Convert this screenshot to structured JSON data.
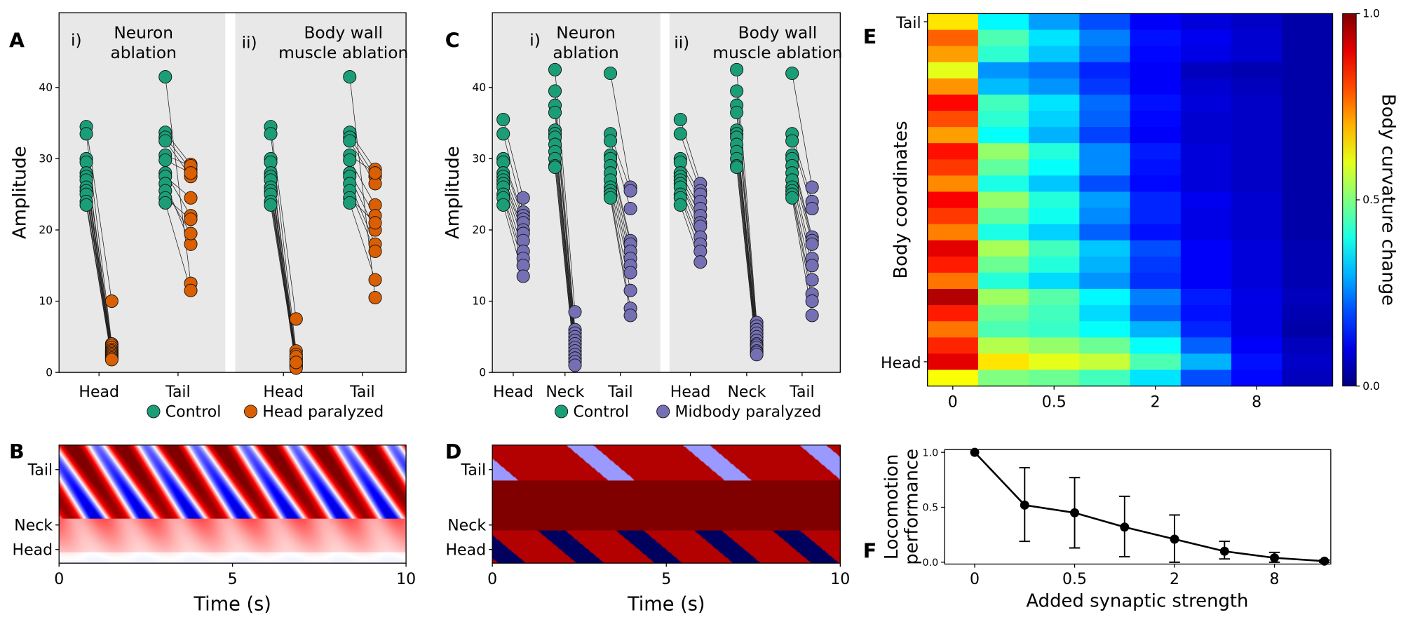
{
  "panel_letters": {
    "A": "A",
    "B": "B",
    "C": "C",
    "D": "D",
    "E": "E",
    "F": "F"
  },
  "colors": {
    "control": "#1b9e77",
    "head_paralyzed": "#d95f02",
    "midbody_paralyzed": "#7570b3",
    "panel_bg": "#e8e8e8"
  },
  "chart_data": [
    {
      "id": "A",
      "type": "scatter",
      "ylabel": "Amplitude",
      "ylim": [
        0,
        50.5
      ],
      "yticks": [
        "0",
        "10",
        "20",
        "30",
        "40"
      ],
      "legend": {
        "placement": "bottom-right",
        "entries": [
          "Control",
          "Head paralyzed"
        ]
      },
      "subplots": [
        {
          "prefix": "i)",
          "title": [
            "Neuron",
            "ablation"
          ],
          "categories": [
            "Head",
            "Tail"
          ],
          "series": {
            "Head": {
              "control": [
                34.5,
                33.5,
                30,
                29.5,
                28,
                27.5,
                27,
                26,
                25.5,
                25,
                24,
                23.5
              ],
              "paralyzed": [
                10,
                4,
                3.8,
                3.5,
                3.2,
                3,
                2.8,
                2.6,
                2.4,
                2.2,
                2,
                1.8
              ]
            },
            "Tail": {
              "control": [
                41.5,
                33.7,
                33,
                32.5,
                30.5,
                29.8,
                28,
                27.5,
                26.5,
                25.5,
                24.5,
                23.8
              ],
              "paralyzed": [
                12.5,
                29.2,
                28.5,
                27.5,
                29,
                28,
                22,
                24.5,
                18,
                19.5,
                21.5,
                11.5
              ]
            }
          }
        },
        {
          "prefix": "ii)",
          "title": [
            "Body wall",
            "muscle ablation"
          ],
          "categories": [
            "Head",
            "Tail"
          ],
          "series": {
            "Head": {
              "control": [
                34.5,
                33.5,
                30,
                29.5,
                28,
                27.5,
                27,
                26,
                25.5,
                25,
                24,
                23.5
              ],
              "paralyzed": [
                7.5,
                3,
                2.5,
                2,
                1.8,
                1.5,
                1.2,
                1,
                0.8,
                0.6,
                2.2,
                1.4
              ]
            },
            "Tail": {
              "control": [
                41.5,
                33.7,
                33,
                32.5,
                30.5,
                29.8,
                28,
                27.5,
                26.5,
                25.5,
                24.5,
                23.8
              ],
              "paralyzed": [
                10.5,
                28.5,
                27.5,
                26.5,
                28,
                23.5,
                22,
                20,
                18,
                17,
                21,
                13
              ]
            }
          }
        }
      ]
    },
    {
      "id": "B",
      "type": "heatmap",
      "description_axes": "kymograph",
      "yticks": [
        "Tail",
        "Neck",
        "Head"
      ],
      "xticks": [
        "0",
        "5",
        "10"
      ],
      "xlabel": "Time (s)",
      "xlim": [
        0,
        10
      ]
    },
    {
      "id": "C",
      "type": "scatter",
      "ylabel": "Amplitude",
      "ylim": [
        0,
        50.5
      ],
      "yticks": [
        "0",
        "10",
        "20",
        "30",
        "40"
      ],
      "legend": {
        "placement": "bottom-right",
        "entries": [
          "Control",
          "Midbody paralyzed"
        ]
      },
      "subplots": [
        {
          "prefix": "i)",
          "title": [
            "Neuron",
            "ablation"
          ],
          "categories": [
            "Head",
            "Neck",
            "Tail"
          ],
          "series": {
            "Head": {
              "control": [
                35.5,
                33.5,
                30,
                29.5,
                28,
                27.5,
                27,
                26.5,
                26,
                25,
                24.5,
                23.5
              ],
              "paralyzed": [
                24.5,
                22.5,
                22,
                21.5,
                21,
                20,
                19.5,
                18.5,
                17,
                16,
                15,
                13.5
              ]
            },
            "Neck": {
              "control": [
                42.5,
                39.5,
                37.5,
                36.5,
                34,
                33.5,
                33,
                32,
                31,
                30,
                29,
                28.8
              ],
              "paralyzed": [
                8.5,
                6,
                5.5,
                5,
                4.5,
                4,
                3.5,
                3,
                2.5,
                2,
                1.5,
                1
              ]
            },
            "Tail": {
              "control": [
                42,
                33.5,
                32.5,
                30.5,
                30,
                29,
                28,
                27,
                26,
                25.5,
                25,
                24.5
              ],
              "paralyzed": [
                26,
                25.5,
                23,
                18.5,
                18,
                17,
                16,
                15,
                14,
                11.5,
                9,
                8
              ]
            }
          }
        },
        {
          "prefix": "ii)",
          "title": [
            "Body wall",
            "muscle ablation"
          ],
          "categories": [
            "Head",
            "Neck",
            "Tail"
          ],
          "series": {
            "Head": {
              "control": [
                35.5,
                33.5,
                30,
                29.5,
                28,
                27.5,
                27,
                26.5,
                26,
                25,
                24.5,
                23.5
              ],
              "paralyzed": [
                26.5,
                25.5,
                25,
                24,
                23,
                22,
                21,
                20.5,
                19,
                18,
                17,
                15.5
              ]
            },
            "Neck": {
              "control": [
                42.5,
                39.5,
                37.5,
                36.5,
                34,
                33.5,
                33,
                32,
                31,
                30,
                29,
                28.8
              ],
              "paralyzed": [
                7,
                6.5,
                6,
                5.5,
                5,
                4.5,
                4,
                3.8,
                3.5,
                3,
                2.8,
                2.5
              ]
            },
            "Tail": {
              "control": [
                42,
                33.5,
                32.5,
                30.5,
                30,
                29,
                28,
                27,
                26,
                25.5,
                25,
                24.5
              ],
              "paralyzed": [
                26,
                24,
                23,
                19,
                18.5,
                18,
                16,
                15,
                13,
                11,
                10,
                8
              ]
            }
          }
        }
      ]
    },
    {
      "id": "D",
      "type": "heatmap",
      "description_axes": "kymograph",
      "yticks": [
        "Tail",
        "Neck",
        "Head"
      ],
      "xticks": [
        "0",
        "5",
        "10"
      ],
      "xlabel": "Time (s)",
      "xlim": [
        0,
        10
      ]
    },
    {
      "id": "E",
      "type": "heatmap",
      "ylabel": "Body coordinates",
      "yticks": [
        {
          "row": 0,
          "label": "Tail"
        },
        {
          "row": 21,
          "label": "Head"
        }
      ],
      "xticks": [
        {
          "col": 0,
          "label": "0"
        },
        {
          "col": 2,
          "label": "0.5"
        },
        {
          "col": 4,
          "label": "2"
        },
        {
          "col": 6,
          "label": "8"
        }
      ],
      "colorbar": {
        "label": "Body curvature change",
        "ticks": [
          "0.0",
          "0.5",
          "1.0"
        ],
        "range": [
          0,
          1
        ],
        "cmap": "jet"
      },
      "values": [
        [
          0.65,
          0.37,
          0.28,
          0.2,
          0.12,
          0.09,
          0.07,
          0.04
        ],
        [
          0.78,
          0.45,
          0.35,
          0.25,
          0.14,
          0.11,
          0.08,
          0.04
        ],
        [
          0.72,
          0.42,
          0.32,
          0.23,
          0.13,
          0.1,
          0.08,
          0.04
        ],
        [
          0.6,
          0.27,
          0.24,
          0.16,
          0.12,
          0.06,
          0.05,
          0.04
        ],
        [
          0.73,
          0.31,
          0.27,
          0.18,
          0.12,
          0.08,
          0.06,
          0.04
        ],
        [
          0.87,
          0.44,
          0.35,
          0.23,
          0.14,
          0.09,
          0.07,
          0.04
        ],
        [
          0.8,
          0.42,
          0.33,
          0.22,
          0.13,
          0.08,
          0.07,
          0.04
        ],
        [
          0.72,
          0.38,
          0.3,
          0.19,
          0.12,
          0.08,
          0.07,
          0.04
        ],
        [
          0.86,
          0.52,
          0.41,
          0.26,
          0.15,
          0.09,
          0.07,
          0.04
        ],
        [
          0.82,
          0.47,
          0.38,
          0.26,
          0.14,
          0.09,
          0.07,
          0.04
        ],
        [
          0.74,
          0.4,
          0.32,
          0.2,
          0.13,
          0.09,
          0.07,
          0.04
        ],
        [
          0.88,
          0.52,
          0.41,
          0.28,
          0.16,
          0.11,
          0.08,
          0.04
        ],
        [
          0.82,
          0.47,
          0.39,
          0.26,
          0.16,
          0.1,
          0.08,
          0.04
        ],
        [
          0.75,
          0.4,
          0.33,
          0.22,
          0.14,
          0.1,
          0.08,
          0.04
        ],
        [
          0.9,
          0.54,
          0.44,
          0.32,
          0.2,
          0.12,
          0.09,
          0.05
        ],
        [
          0.85,
          0.48,
          0.41,
          0.3,
          0.18,
          0.12,
          0.09,
          0.05
        ],
        [
          0.76,
          0.41,
          0.34,
          0.27,
          0.17,
          0.12,
          0.09,
          0.05
        ],
        [
          0.95,
          0.53,
          0.46,
          0.37,
          0.25,
          0.15,
          0.1,
          0.06
        ],
        [
          0.85,
          0.48,
          0.44,
          0.34,
          0.22,
          0.14,
          0.1,
          0.05
        ],
        [
          0.76,
          0.45,
          0.43,
          0.38,
          0.3,
          0.16,
          0.1,
          0.04
        ],
        [
          0.84,
          0.55,
          0.52,
          0.48,
          0.38,
          0.22,
          0.12,
          0.06
        ],
        [
          0.9,
          0.65,
          0.6,
          0.57,
          0.45,
          0.3,
          0.14,
          0.07
        ],
        [
          0.62,
          0.5,
          0.48,
          0.44,
          0.35,
          0.2,
          0.13,
          0.06
        ]
      ]
    },
    {
      "id": "F",
      "type": "line",
      "ylabel": [
        "Locomotion",
        "performance"
      ],
      "xlabel": "Added synaptic strength",
      "ylim": [
        0,
        1.05
      ],
      "yticks": [
        "0.0",
        "0.5",
        "1.0"
      ],
      "xticks": [
        {
          "index": 0,
          "label": "0"
        },
        {
          "index": 2,
          "label": "0.5"
        },
        {
          "index": 4,
          "label": "2"
        },
        {
          "index": 6,
          "label": "8"
        }
      ],
      "values": [
        1.0,
        0.52,
        0.45,
        0.32,
        0.21,
        0.1,
        0.04,
        0.01
      ],
      "err_low": [
        1.0,
        0.19,
        0.13,
        0.05,
        0.0,
        0.03,
        0.0,
        0.0
      ],
      "err_high": [
        1.0,
        0.86,
        0.77,
        0.6,
        0.43,
        0.19,
        0.09,
        0.02
      ]
    }
  ]
}
